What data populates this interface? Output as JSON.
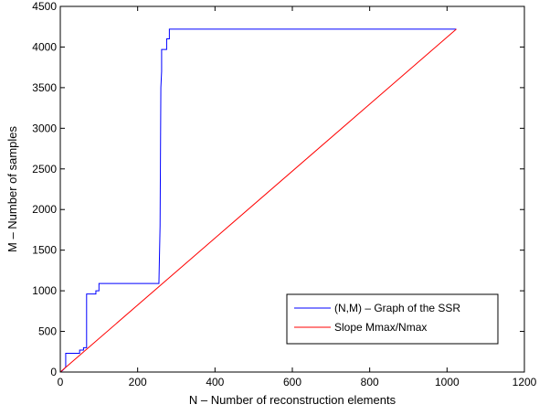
{
  "chart_data": {
    "type": "line",
    "title": "",
    "xlabel": "N – Number of reconstruction elements",
    "ylabel": "M – Number of samples",
    "xlim": [
      0,
      1200
    ],
    "ylim": [
      0,
      4500
    ],
    "xticks": [
      "0",
      "200",
      "400",
      "600",
      "800",
      "1000",
      "1200"
    ],
    "yticks": [
      "0",
      "500",
      "1000",
      "1500",
      "2000",
      "2500",
      "3000",
      "3500",
      "4000",
      "4500"
    ],
    "grid": false,
    "legend_position": "bottom-right",
    "series": [
      {
        "name": "(N,M) – Graph of the SSR",
        "color": "#0000ff",
        "style": "step",
        "x": [
          0,
          6,
          10,
          14,
          14,
          30,
          50,
          50,
          60,
          60,
          68,
          68,
          92,
          92,
          100,
          100,
          255,
          258,
          260,
          262,
          262,
          275,
          275,
          282,
          282,
          1024
        ],
        "y": [
          0,
          20,
          40,
          60,
          230,
          230,
          230,
          270,
          270,
          300,
          300,
          960,
          960,
          1000,
          1000,
          1090,
          1090,
          1800,
          3500,
          3700,
          3970,
          3970,
          4100,
          4100,
          4220,
          4220
        ]
      },
      {
        "name": "Slope Mmax/Nmax",
        "color": "#ff0000",
        "style": "line",
        "x": [
          0,
          1024
        ],
        "y": [
          0,
          4220
        ]
      }
    ]
  }
}
